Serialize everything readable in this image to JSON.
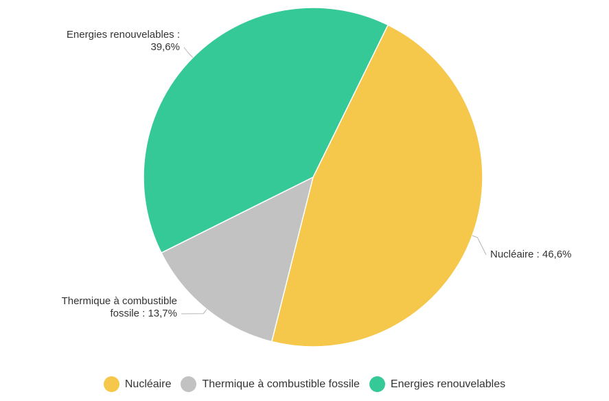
{
  "chart_data": {
    "type": "pie",
    "title": "",
    "categories": [
      "Nucléaire",
      "Thermique à combustible fossile",
      "Energies renouvelables"
    ],
    "values": [
      46.6,
      13.7,
      39.6
    ],
    "colors": [
      "#f5c84c",
      "#c2c2c2",
      "#34c996"
    ],
    "data_labels": [
      {
        "lines": [
          "Nucléaire : 46,6%"
        ]
      },
      {
        "lines": [
          "Thermique à combustible",
          "fossile : 13,7%"
        ]
      },
      {
        "lines": [
          "Energies renouvelables :",
          "39,6%"
        ]
      }
    ],
    "legend": {
      "position": "bottom",
      "items": [
        "Nucléaire",
        "Thermique à combustible fossile",
        "Energies renouvelables"
      ]
    }
  }
}
